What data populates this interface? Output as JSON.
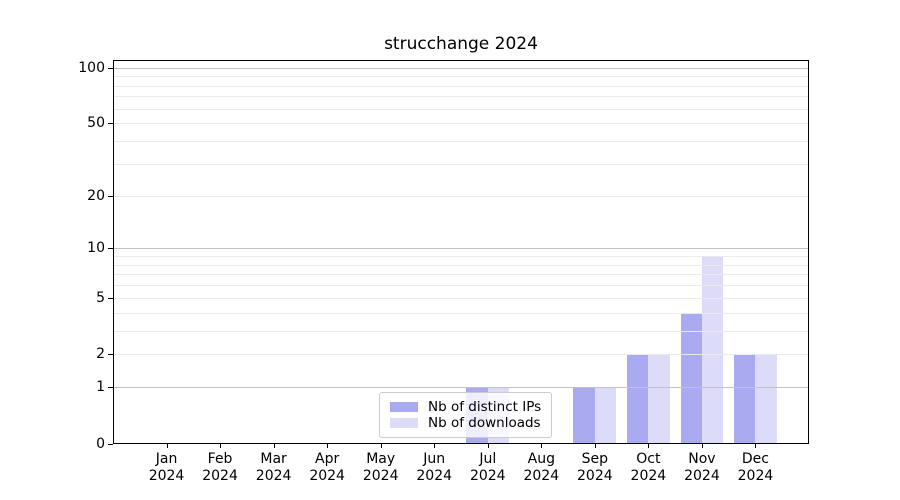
{
  "chart_data": {
    "type": "bar",
    "title": "strucchange 2024",
    "categories": [
      "Jan",
      "Feb",
      "Mar",
      "Apr",
      "May",
      "Jun",
      "Jul",
      "Aug",
      "Sep",
      "Oct",
      "Nov",
      "Dec"
    ],
    "year_label": "2024",
    "series": [
      {
        "name": "Nb of distinct IPs",
        "color": "#aaaaf0",
        "values": [
          0,
          0,
          0,
          0,
          0,
          0,
          1,
          0,
          1,
          2,
          4,
          2
        ]
      },
      {
        "name": "Nb of downloads",
        "color": "#dcdcf8",
        "values": [
          0,
          0,
          0,
          0,
          0,
          0,
          1,
          0,
          1,
          2,
          9,
          2
        ]
      }
    ],
    "yscale": "log1p",
    "ylim": [
      0,
      110
    ],
    "yticks": [
      0,
      1,
      2,
      5,
      10,
      20,
      50,
      100
    ],
    "major_gridlines": [
      1,
      10,
      100
    ],
    "minor_gridlines": [
      2,
      3,
      4,
      5,
      6,
      7,
      8,
      9,
      20,
      30,
      40,
      50,
      60,
      70,
      80,
      90
    ],
    "grid": true,
    "legend": {
      "position": "lower center"
    },
    "colors": {
      "major_grid": "#c2c2c2",
      "minor_grid": "#eaeaea",
      "spine": "#000000",
      "background": "#ffffff",
      "text": "#000000"
    }
  }
}
